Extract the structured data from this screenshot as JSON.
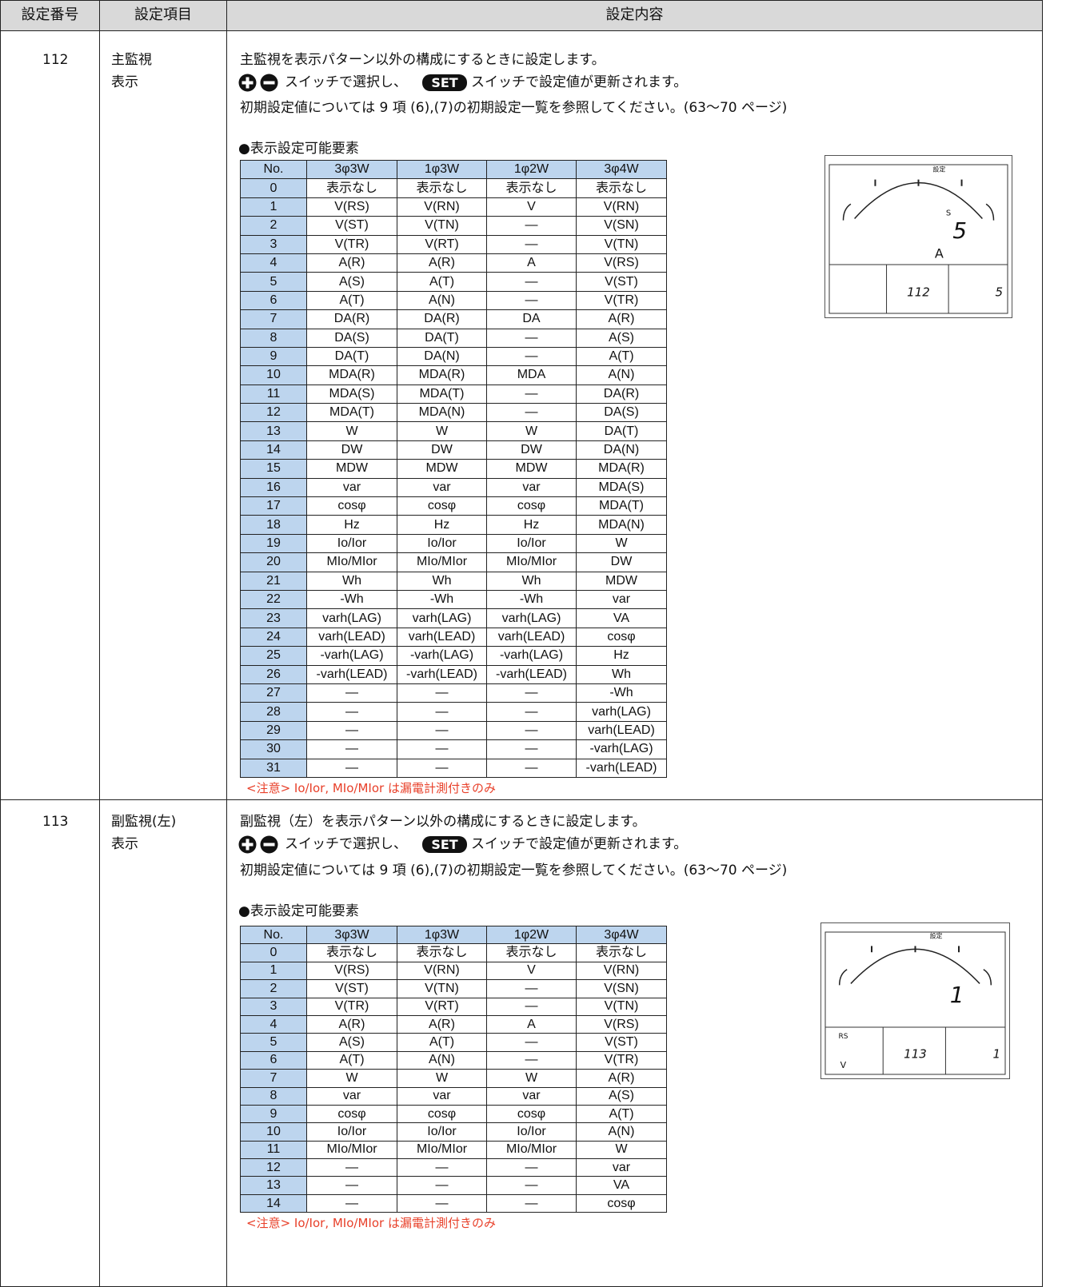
{
  "header": [
    "設定番号",
    "設定項目",
    "設定内容"
  ],
  "rows": [
    {
      "number": "112",
      "item": [
        "主監視",
        "表示"
      ],
      "line1": "主監視を表示パターン以外の構成にするときに設定します。",
      "switch_text_1": "スイッチで選択し、",
      "set_label": "SET",
      "switch_text_2": "スイッチで設定値が更新されます。",
      "reference": "初期設定値については 9 項 (6),(7)の初期設定一覧を参照してください。(63～70 ページ)",
      "heading": "●表示設定可能要素",
      "table": {
        "columns": [
          "No.",
          "3φ3W",
          "1φ3W",
          "1φ2W",
          "3φ4W"
        ],
        "rows": [
          [
            "0",
            "表示なし",
            "表示なし",
            "表示なし",
            "表示なし"
          ],
          [
            "1",
            "V(RS)",
            "V(RN)",
            "V",
            "V(RN)"
          ],
          [
            "2",
            "V(ST)",
            "V(TN)",
            "―",
            "V(SN)"
          ],
          [
            "3",
            "V(TR)",
            "V(RT)",
            "―",
            "V(TN)"
          ],
          [
            "4",
            "A(R)",
            "A(R)",
            "A",
            "V(RS)"
          ],
          [
            "5",
            "A(S)",
            "A(T)",
            "―",
            "V(ST)"
          ],
          [
            "6",
            "A(T)",
            "A(N)",
            "―",
            "V(TR)"
          ],
          [
            "7",
            "DA(R)",
            "DA(R)",
            "DA",
            "A(R)"
          ],
          [
            "8",
            "DA(S)",
            "DA(T)",
            "―",
            "A(S)"
          ],
          [
            "9",
            "DA(T)",
            "DA(N)",
            "―",
            "A(T)"
          ],
          [
            "10",
            "MDA(R)",
            "MDA(R)",
            "MDA",
            "A(N)"
          ],
          [
            "11",
            "MDA(S)",
            "MDA(T)",
            "―",
            "DA(R)"
          ],
          [
            "12",
            "MDA(T)",
            "MDA(N)",
            "―",
            "DA(S)"
          ],
          [
            "13",
            "W",
            "W",
            "W",
            "DA(T)"
          ],
          [
            "14",
            "DW",
            "DW",
            "DW",
            "DA(N)"
          ],
          [
            "15",
            "MDW",
            "MDW",
            "MDW",
            "MDA(R)"
          ],
          [
            "16",
            "var",
            "var",
            "var",
            "MDA(S)"
          ],
          [
            "17",
            "cosφ",
            "cosφ",
            "cosφ",
            "MDA(T)"
          ],
          [
            "18",
            "Hz",
            "Hz",
            "Hz",
            "MDA(N)"
          ],
          [
            "19",
            "Io/Ior",
            "Io/Ior",
            "Io/Ior",
            "W"
          ],
          [
            "20",
            "MIo/MIor",
            "MIo/MIor",
            "MIo/MIor",
            "DW"
          ],
          [
            "21",
            "Wh",
            "Wh",
            "Wh",
            "MDW"
          ],
          [
            "22",
            "-Wh",
            "-Wh",
            "-Wh",
            "var"
          ],
          [
            "23",
            "varh(LAG)",
            "varh(LAG)",
            "varh(LAG)",
            "VA"
          ],
          [
            "24",
            "varh(LEAD)",
            "varh(LEAD)",
            "varh(LEAD)",
            "cosφ"
          ],
          [
            "25",
            "-varh(LAG)",
            "-varh(LAG)",
            "-varh(LAG)",
            "Hz"
          ],
          [
            "26",
            "-varh(LEAD)",
            "-varh(LEAD)",
            "-varh(LEAD)",
            "Wh"
          ],
          [
            "27",
            "―",
            "―",
            "―",
            "-Wh"
          ],
          [
            "28",
            "―",
            "―",
            "―",
            "varh(LAG)"
          ],
          [
            "29",
            "―",
            "―",
            "―",
            "varh(LEAD)"
          ],
          [
            "30",
            "―",
            "―",
            "―",
            "-varh(LAG)"
          ],
          [
            "31",
            "―",
            "―",
            "―",
            "-varh(LEAD)"
          ]
        ]
      },
      "note": "<注意> Io/Ior, MIo/MIor は漏電計測付きのみ",
      "display": {
        "label": "設定",
        "sub": "S",
        "main": "5",
        "unit": "A",
        "mid": "112",
        "right": "5"
      }
    },
    {
      "number": "113",
      "item": [
        "副監視(左)",
        "表示"
      ],
      "line1": "副監視（左）を表示パターン以外の構成にするときに設定します。",
      "switch_text_1": "スイッチで選択し、",
      "set_label": "SET",
      "switch_text_2": "スイッチで設定値が更新されます。",
      "reference": "初期設定値については 9 項 (6),(7)の初期設定一覧を参照してください。(63～70 ページ)",
      "heading": "●表示設定可能要素",
      "table": {
        "columns": [
          "No.",
          "3φ3W",
          "1φ3W",
          "1φ2W",
          "3φ4W"
        ],
        "rows": [
          [
            "0",
            "表示なし",
            "表示なし",
            "表示なし",
            "表示なし"
          ],
          [
            "1",
            "V(RS)",
            "V(RN)",
            "V",
            "V(RN)"
          ],
          [
            "2",
            "V(ST)",
            "V(TN)",
            "―",
            "V(SN)"
          ],
          [
            "3",
            "V(TR)",
            "V(RT)",
            "―",
            "V(TN)"
          ],
          [
            "4",
            "A(R)",
            "A(R)",
            "A",
            "V(RS)"
          ],
          [
            "5",
            "A(S)",
            "A(T)",
            "―",
            "V(ST)"
          ],
          [
            "6",
            "A(T)",
            "A(N)",
            "―",
            "V(TR)"
          ],
          [
            "7",
            "W",
            "W",
            "W",
            "A(R)"
          ],
          [
            "8",
            "var",
            "var",
            "var",
            "A(S)"
          ],
          [
            "9",
            "cosφ",
            "cosφ",
            "cosφ",
            "A(T)"
          ],
          [
            "10",
            "Io/Ior",
            "Io/Ior",
            "Io/Ior",
            "A(N)"
          ],
          [
            "11",
            "MIo/MIor",
            "MIo/MIor",
            "MIo/MIor",
            "W"
          ],
          [
            "12",
            "―",
            "―",
            "―",
            "var"
          ],
          [
            "13",
            "―",
            "―",
            "―",
            "VA"
          ],
          [
            "14",
            "―",
            "―",
            "―",
            "cosφ"
          ]
        ]
      },
      "note": "<注意> Io/Ior, MIo/MIor は漏電計測付きのみ",
      "display": {
        "label": "設定",
        "main": "1",
        "left_sub": "RS",
        "left_unit": "V",
        "mid": "113",
        "right": "1"
      }
    }
  ]
}
